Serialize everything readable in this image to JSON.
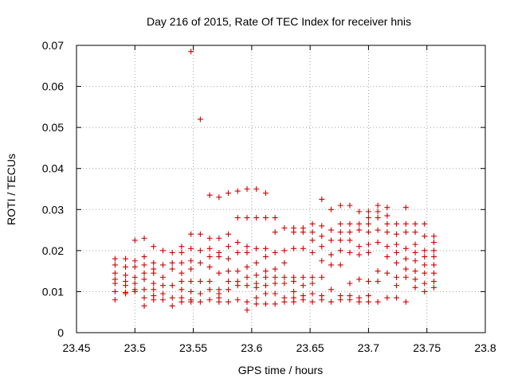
{
  "chart_data": {
    "type": "scatter",
    "title": "Day 216 of 2015, Rate Of TEC Index for receiver hnis",
    "xlabel": "GPS time / hours",
    "ylabel": "ROTI / TECUs",
    "xlim": [
      23.45,
      23.8
    ],
    "ylim": [
      0,
      0.07
    ],
    "xticks": [
      23.45,
      23.5,
      23.55,
      23.6,
      23.65,
      23.7,
      23.75,
      23.8
    ],
    "xtick_labels": [
      "23.45",
      "23.5",
      "23.55",
      "23.6",
      "23.65",
      "23.7",
      "23.75",
      "23.8"
    ],
    "yticks": [
      0,
      0.01,
      0.02,
      0.03,
      0.04,
      0.05,
      0.06,
      0.07
    ],
    "ytick_labels": [
      "0",
      "0.01",
      "0.02",
      "0.03",
      "0.04",
      "0.05",
      "0.06",
      "0.07"
    ],
    "grid": true,
    "marker_color": "#d00000",
    "series": [
      {
        "marker": "plus",
        "points": [
          [
            23.483,
            0.018
          ],
          [
            23.483,
            0.0165
          ],
          [
            23.483,
            0.0145
          ],
          [
            23.483,
            0.013
          ],
          [
            23.483,
            0.012
          ],
          [
            23.483,
            0.01
          ],
          [
            23.483,
            0.008
          ],
          [
            23.492,
            0.018
          ],
          [
            23.492,
            0.016
          ],
          [
            23.492,
            0.014
          ],
          [
            23.492,
            0.0125
          ],
          [
            23.492,
            0.0115
          ],
          [
            23.492,
            0.0095
          ],
          [
            23.492,
            0.0098
          ],
          [
            23.5,
            0.0225
          ],
          [
            23.5,
            0.0175
          ],
          [
            23.5,
            0.016
          ],
          [
            23.5,
            0.0135
          ],
          [
            23.5,
            0.012
          ],
          [
            23.5,
            0.0105
          ],
          [
            23.5,
            0.01
          ],
          [
            23.508,
            0.023
          ],
          [
            23.508,
            0.0185
          ],
          [
            23.508,
            0.0165
          ],
          [
            23.508,
            0.0145
          ],
          [
            23.508,
            0.013
          ],
          [
            23.508,
            0.0105
          ],
          [
            23.508,
            0.0085
          ],
          [
            23.508,
            0.0065
          ],
          [
            23.516,
            0.021
          ],
          [
            23.516,
            0.017
          ],
          [
            23.516,
            0.0155
          ],
          [
            23.516,
            0.0145
          ],
          [
            23.516,
            0.012
          ],
          [
            23.516,
            0.0105
          ],
          [
            23.516,
            0.009
          ],
          [
            23.516,
            0.008
          ],
          [
            23.524,
            0.02
          ],
          [
            23.524,
            0.0165
          ],
          [
            23.524,
            0.0135
          ],
          [
            23.524,
            0.0115
          ],
          [
            23.524,
            0.0095
          ],
          [
            23.524,
            0.008
          ],
          [
            23.532,
            0.0195
          ],
          [
            23.532,
            0.017
          ],
          [
            23.532,
            0.0155
          ],
          [
            23.532,
            0.0115
          ],
          [
            23.532,
            0.0085
          ],
          [
            23.532,
            0.0065
          ],
          [
            23.54,
            0.021
          ],
          [
            23.54,
            0.0195
          ],
          [
            23.54,
            0.017
          ],
          [
            23.54,
            0.0145
          ],
          [
            23.54,
            0.0125
          ],
          [
            23.54,
            0.0105
          ],
          [
            23.54,
            0.0085
          ],
          [
            23.54,
            0.0075
          ],
          [
            23.548,
            0.0685
          ],
          [
            23.548,
            0.024
          ],
          [
            23.548,
            0.0205
          ],
          [
            23.548,
            0.0175
          ],
          [
            23.548,
            0.0155
          ],
          [
            23.548,
            0.0125
          ],
          [
            23.548,
            0.01
          ],
          [
            23.548,
            0.008
          ],
          [
            23.548,
            0.0075
          ],
          [
            23.556,
            0.052
          ],
          [
            23.556,
            0.024
          ],
          [
            23.556,
            0.02
          ],
          [
            23.556,
            0.017
          ],
          [
            23.556,
            0.0125
          ],
          [
            23.556,
            0.0095
          ],
          [
            23.556,
            0.0075
          ],
          [
            23.564,
            0.0335
          ],
          [
            23.564,
            0.023
          ],
          [
            23.564,
            0.0205
          ],
          [
            23.564,
            0.0185
          ],
          [
            23.564,
            0.016
          ],
          [
            23.564,
            0.0125
          ],
          [
            23.564,
            0.0105
          ],
          [
            23.564,
            0.008
          ],
          [
            23.572,
            0.033
          ],
          [
            23.572,
            0.023
          ],
          [
            23.572,
            0.0195
          ],
          [
            23.572,
            0.0185
          ],
          [
            23.572,
            0.0145
          ],
          [
            23.572,
            0.0105
          ],
          [
            23.572,
            0.0095
          ],
          [
            23.572,
            0.0085
          ],
          [
            23.572,
            0.0075
          ],
          [
            23.58,
            0.034
          ],
          [
            23.58,
            0.024
          ],
          [
            23.58,
            0.021
          ],
          [
            23.58,
            0.018
          ],
          [
            23.58,
            0.015
          ],
          [
            23.58,
            0.0125
          ],
          [
            23.58,
            0.0105
          ],
          [
            23.58,
            0.0075
          ],
          [
            23.588,
            0.0345
          ],
          [
            23.588,
            0.028
          ],
          [
            23.588,
            0.022
          ],
          [
            23.588,
            0.0195
          ],
          [
            23.588,
            0.015
          ],
          [
            23.588,
            0.0125
          ],
          [
            23.588,
            0.0115
          ],
          [
            23.588,
            0.008
          ],
          [
            23.596,
            0.035
          ],
          [
            23.596,
            0.028
          ],
          [
            23.596,
            0.021
          ],
          [
            23.596,
            0.0195
          ],
          [
            23.596,
            0.016
          ],
          [
            23.596,
            0.0135
          ],
          [
            23.596,
            0.0115
          ],
          [
            23.596,
            0.0075
          ],
          [
            23.596,
            0.0055
          ],
          [
            23.604,
            0.035
          ],
          [
            23.604,
            0.028
          ],
          [
            23.604,
            0.0205
          ],
          [
            23.604,
            0.017
          ],
          [
            23.604,
            0.014
          ],
          [
            23.604,
            0.012
          ],
          [
            23.604,
            0.011
          ],
          [
            23.604,
            0.0085
          ],
          [
            23.604,
            0.007
          ],
          [
            23.612,
            0.034
          ],
          [
            23.612,
            0.028
          ],
          [
            23.612,
            0.0205
          ],
          [
            23.612,
            0.0185
          ],
          [
            23.612,
            0.015
          ],
          [
            23.612,
            0.0135
          ],
          [
            23.612,
            0.0115
          ],
          [
            23.612,
            0.0095
          ],
          [
            23.612,
            0.007
          ],
          [
            23.62,
            0.028
          ],
          [
            23.62,
            0.0245
          ],
          [
            23.62,
            0.0195
          ],
          [
            23.62,
            0.0155
          ],
          [
            23.62,
            0.0135
          ],
          [
            23.62,
            0.012
          ],
          [
            23.62,
            0.0095
          ],
          [
            23.62,
            0.007
          ],
          [
            23.628,
            0.0255
          ],
          [
            23.628,
            0.02
          ],
          [
            23.628,
            0.017
          ],
          [
            23.628,
            0.0135
          ],
          [
            23.628,
            0.012
          ],
          [
            23.628,
            0.0085
          ],
          [
            23.628,
            0.0075
          ],
          [
            23.636,
            0.0255
          ],
          [
            23.636,
            0.0245
          ],
          [
            23.636,
            0.0205
          ],
          [
            23.636,
            0.0135
          ],
          [
            23.636,
            0.0125
          ],
          [
            23.636,
            0.01
          ],
          [
            23.636,
            0.0085
          ],
          [
            23.636,
            0.0075
          ],
          [
            23.644,
            0.0255
          ],
          [
            23.644,
            0.0245
          ],
          [
            23.644,
            0.0205
          ],
          [
            23.644,
            0.0135
          ],
          [
            23.644,
            0.0115
          ],
          [
            23.644,
            0.009
          ],
          [
            23.644,
            0.008
          ],
          [
            23.652,
            0.0265
          ],
          [
            23.652,
            0.0245
          ],
          [
            23.652,
            0.0225
          ],
          [
            23.652,
            0.0195
          ],
          [
            23.652,
            0.0135
          ],
          [
            23.652,
            0.012
          ],
          [
            23.652,
            0.0095
          ],
          [
            23.652,
            0.0075
          ],
          [
            23.66,
            0.0325
          ],
          [
            23.66,
            0.026
          ],
          [
            23.66,
            0.0235
          ],
          [
            23.66,
            0.021
          ],
          [
            23.66,
            0.0175
          ],
          [
            23.66,
            0.0135
          ],
          [
            23.66,
            0.009
          ],
          [
            23.66,
            0.008
          ],
          [
            23.668,
            0.03
          ],
          [
            23.668,
            0.025
          ],
          [
            23.668,
            0.0225
          ],
          [
            23.668,
            0.019
          ],
          [
            23.668,
            0.0165
          ],
          [
            23.668,
            0.0105
          ],
          [
            23.668,
            0.0075
          ],
          [
            23.676,
            0.031
          ],
          [
            23.676,
            0.0265
          ],
          [
            23.676,
            0.0245
          ],
          [
            23.676,
            0.0225
          ],
          [
            23.676,
            0.02
          ],
          [
            23.676,
            0.0165
          ],
          [
            23.676,
            0.009
          ],
          [
            23.676,
            0.008
          ],
          [
            23.684,
            0.031
          ],
          [
            23.684,
            0.0265
          ],
          [
            23.684,
            0.0245
          ],
          [
            23.684,
            0.0225
          ],
          [
            23.684,
            0.0195
          ],
          [
            23.684,
            0.012
          ],
          [
            23.684,
            0.009
          ],
          [
            23.684,
            0.008
          ],
          [
            23.692,
            0.0295
          ],
          [
            23.692,
            0.0265
          ],
          [
            23.692,
            0.025
          ],
          [
            23.692,
            0.021
          ],
          [
            23.692,
            0.019
          ],
          [
            23.692,
            0.013
          ],
          [
            23.692,
            0.0085
          ],
          [
            23.692,
            0.0075
          ],
          [
            23.7,
            0.0295
          ],
          [
            23.7,
            0.028
          ],
          [
            23.7,
            0.0265
          ],
          [
            23.7,
            0.0245
          ],
          [
            23.7,
            0.0215
          ],
          [
            23.7,
            0.0195
          ],
          [
            23.7,
            0.0125
          ],
          [
            23.7,
            0.009
          ],
          [
            23.7,
            0.0075
          ],
          [
            23.708,
            0.031
          ],
          [
            23.708,
            0.0295
          ],
          [
            23.708,
            0.028
          ],
          [
            23.708,
            0.025
          ],
          [
            23.708,
            0.022
          ],
          [
            23.708,
            0.015
          ],
          [
            23.708,
            0.0125
          ],
          [
            23.708,
            0.0075
          ],
          [
            23.716,
            0.0305
          ],
          [
            23.716,
            0.0285
          ],
          [
            23.716,
            0.0265
          ],
          [
            23.716,
            0.0245
          ],
          [
            23.716,
            0.021
          ],
          [
            23.716,
            0.0185
          ],
          [
            23.716,
            0.0145
          ],
          [
            23.716,
            0.0085
          ],
          [
            23.724,
            0.0265
          ],
          [
            23.724,
            0.024
          ],
          [
            23.724,
            0.0215
          ],
          [
            23.724,
            0.0195
          ],
          [
            23.724,
            0.017
          ],
          [
            23.724,
            0.0135
          ],
          [
            23.724,
            0.0115
          ],
          [
            23.724,
            0.0085
          ],
          [
            23.732,
            0.0305
          ],
          [
            23.732,
            0.0265
          ],
          [
            23.732,
            0.0245
          ],
          [
            23.732,
            0.0205
          ],
          [
            23.732,
            0.018
          ],
          [
            23.732,
            0.0155
          ],
          [
            23.732,
            0.0135
          ],
          [
            23.732,
            0.0075
          ],
          [
            23.74,
            0.0265
          ],
          [
            23.74,
            0.0245
          ],
          [
            23.74,
            0.0215
          ],
          [
            23.74,
            0.0195
          ],
          [
            23.74,
            0.0175
          ],
          [
            23.74,
            0.015
          ],
          [
            23.74,
            0.013
          ],
          [
            23.74,
            0.011
          ],
          [
            23.748,
            0.0265
          ],
          [
            23.748,
            0.0235
          ],
          [
            23.748,
            0.02
          ],
          [
            23.748,
            0.0185
          ],
          [
            23.748,
            0.0165
          ],
          [
            23.748,
            0.0145
          ],
          [
            23.748,
            0.012
          ],
          [
            23.748,
            0.01
          ],
          [
            23.756,
            0.0235
          ],
          [
            23.756,
            0.022
          ],
          [
            23.756,
            0.02
          ],
          [
            23.756,
            0.0185
          ],
          [
            23.756,
            0.0165
          ],
          [
            23.756,
            0.0145
          ],
          [
            23.756,
            0.0125
          ],
          [
            23.756,
            0.011
          ]
        ]
      }
    ]
  }
}
